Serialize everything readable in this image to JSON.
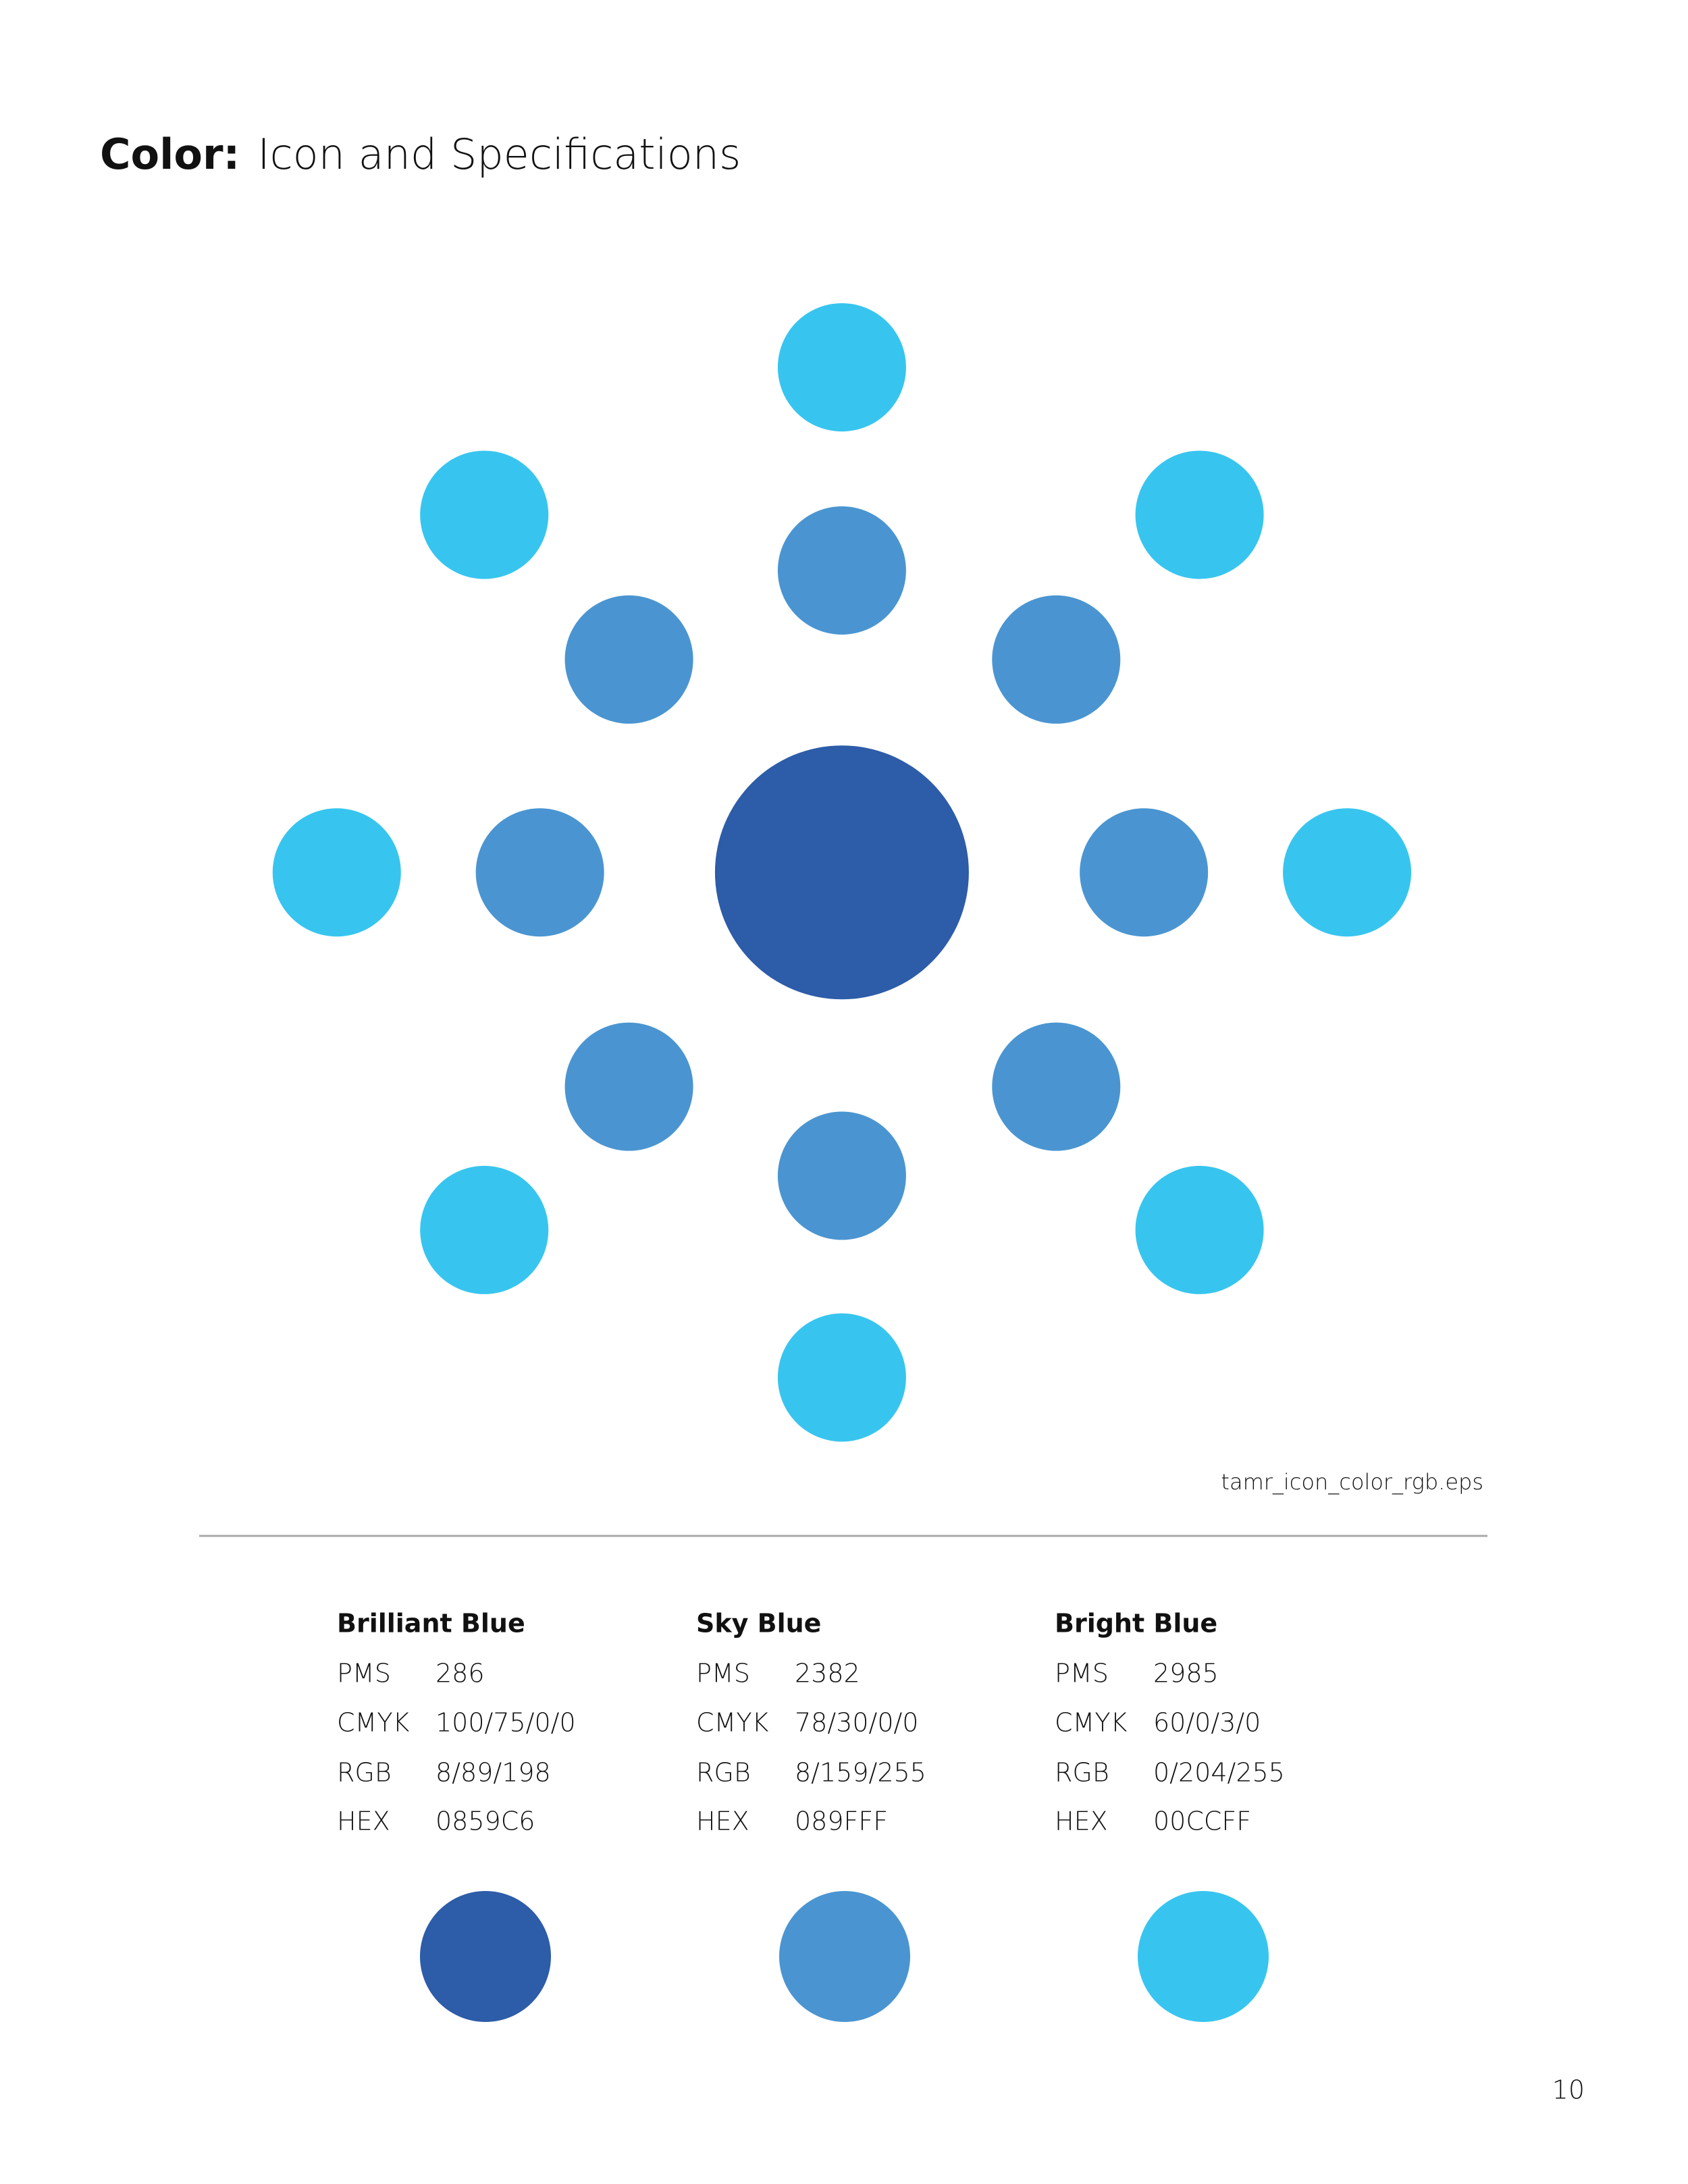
{
  "header": {
    "label": "Color:",
    "title": "Icon and Specifications"
  },
  "icon": {
    "file": "tamr_icon_color_rgb.eps"
  },
  "colors": [
    {
      "name": "Brilliant Blue",
      "specs": [
        {
          "label": "PMS",
          "value": "286"
        },
        {
          "label": "CMYK",
          "value": "100/75/0/0"
        },
        {
          "label": "RGB",
          "value": "8/89/198"
        },
        {
          "label": "HEX",
          "value": "0859C6"
        }
      ]
    },
    {
      "name": "Sky Blue",
      "specs": [
        {
          "label": "PMS",
          "value": "2382"
        },
        {
          "label": "CMYK",
          "value": "78/30/0/0"
        },
        {
          "label": "RGB",
          "value": "8/159/255"
        },
        {
          "label": "HEX",
          "value": "089FFF"
        }
      ]
    },
    {
      "name": "Bright Blue",
      "specs": [
        {
          "label": "PMS",
          "value": "2985"
        },
        {
          "label": "CMYK",
          "value": "60/0/3/0"
        },
        {
          "label": "RGB",
          "value": "0/204/255"
        },
        {
          "label": "HEX",
          "value": "00CCFF"
        }
      ]
    }
  ],
  "page_number": "10"
}
